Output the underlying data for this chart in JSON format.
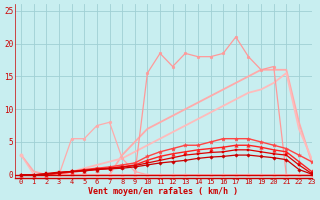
{
  "x": [
    0,
    1,
    2,
    3,
    4,
    5,
    6,
    7,
    8,
    9,
    10,
    11,
    12,
    13,
    14,
    15,
    16,
    17,
    18,
    19,
    20,
    21,
    22,
    23
  ],
  "background_color": "#c8eef0",
  "grid_color": "#a0d0d4",
  "xlabel": "Vent moyen/en rafales ( km/h )",
  "ylim": [
    -0.5,
    26
  ],
  "xlim": [
    -0.5,
    23
  ],
  "yticks": [
    0,
    5,
    10,
    15,
    20,
    25
  ],
  "xticks": [
    0,
    1,
    2,
    3,
    4,
    5,
    6,
    7,
    8,
    9,
    10,
    11,
    12,
    13,
    14,
    15,
    16,
    17,
    18,
    19,
    20,
    21,
    22,
    23
  ],
  "series": [
    {
      "y": [
        0,
        0,
        0,
        0,
        0,
        0,
        0,
        0,
        0,
        0,
        15.5,
        18.5,
        16.5,
        18.5,
        18,
        18,
        18.5,
        21,
        18,
        16,
        16.5,
        0,
        0,
        0
      ],
      "color": "#ff9999",
      "marker": "o",
      "markersize": 2.0,
      "linewidth": 0.9,
      "zorder": 3
    },
    {
      "y": [
        3,
        0.5,
        0,
        0,
        0,
        0,
        0,
        0,
        3,
        5,
        7,
        8,
        9,
        10,
        11,
        12,
        13,
        14,
        15,
        16,
        16,
        16,
        8,
        2
      ],
      "color": "#ffaaaa",
      "marker": null,
      "markersize": 0,
      "linewidth": 1.3,
      "zorder": 2
    },
    {
      "y": [
        0,
        0,
        0,
        0,
        0.5,
        1.0,
        1.5,
        2,
        2.5,
        3.5,
        4.5,
        5.5,
        6.5,
        7.5,
        8.5,
        9.5,
        10.5,
        11.5,
        12.5,
        13,
        14,
        15.5,
        7,
        2.5
      ],
      "color": "#ffbbbb",
      "marker": null,
      "markersize": 0,
      "linewidth": 1.3,
      "zorder": 2
    },
    {
      "y": [
        0,
        0,
        0,
        0,
        5.5,
        5.5,
        7.5,
        8,
        2.5,
        0.5,
        0,
        0,
        0,
        0,
        0,
        0,
        0,
        0,
        0,
        0,
        0,
        0,
        0,
        0
      ],
      "color": "#ffaaaa",
      "marker": "o",
      "markersize": 2.0,
      "linewidth": 0.9,
      "zorder": 3
    },
    {
      "y": [
        3,
        0,
        0,
        0,
        0,
        0,
        0,
        0,
        0,
        0,
        0,
        0,
        0,
        0,
        0,
        0,
        0,
        0,
        0,
        0,
        0,
        0,
        0,
        0
      ],
      "color": "#ffbbbb",
      "marker": "o",
      "markersize": 2.5,
      "linewidth": 0.9,
      "zorder": 3
    },
    {
      "y": [
        0,
        0,
        0,
        0.3,
        0.5,
        0.8,
        1.0,
        1.2,
        1.5,
        1.8,
        2.8,
        3.5,
        4.0,
        4.5,
        4.5,
        5.0,
        5.5,
        5.5,
        5.5,
        5.0,
        4.5,
        4.0,
        3.0,
        2.0
      ],
      "color": "#ff4444",
      "marker": "*",
      "markersize": 3,
      "linewidth": 1.0,
      "zorder": 4
    },
    {
      "y": [
        0,
        0,
        0,
        0.2,
        0.4,
        0.6,
        0.8,
        1.0,
        1.2,
        1.5,
        2.2,
        2.8,
        3.2,
        3.5,
        3.8,
        4.0,
        4.2,
        4.5,
        4.5,
        4.2,
        3.8,
        3.5,
        2.0,
        0.5
      ],
      "color": "#ff2222",
      "marker": "^",
      "markersize": 2.5,
      "linewidth": 1.0,
      "zorder": 4
    },
    {
      "y": [
        0,
        0,
        0.2,
        0.4,
        0.5,
        0.7,
        0.9,
        1.0,
        1.2,
        1.4,
        1.8,
        2.2,
        2.6,
        3.0,
        3.2,
        3.4,
        3.5,
        3.8,
        3.8,
        3.5,
        3.2,
        3.0,
        1.5,
        0.2
      ],
      "color": "#dd0000",
      "marker": "s",
      "markersize": 2.0,
      "linewidth": 0.9,
      "zorder": 4
    },
    {
      "y": [
        0,
        0,
        0.1,
        0.3,
        0.5,
        0.6,
        0.8,
        0.9,
        1.0,
        1.2,
        1.5,
        1.8,
        2.0,
        2.2,
        2.5,
        2.7,
        2.8,
        3.0,
        3.0,
        2.8,
        2.6,
        2.3,
        0.8,
        0.1
      ],
      "color": "#cc0000",
      "marker": "D",
      "markersize": 1.8,
      "linewidth": 0.9,
      "zorder": 4
    }
  ]
}
